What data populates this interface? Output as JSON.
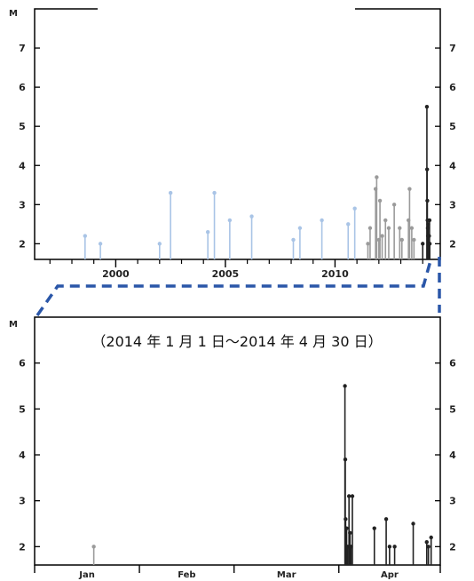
{
  "chart_data": [
    {
      "type": "stem",
      "ylabel": "M",
      "ylim": [
        1.6,
        8.0
      ],
      "yticks": [
        2,
        3,
        4,
        5,
        6,
        7
      ],
      "xlim": [
        1996.3,
        2014.8
      ],
      "xticks": [
        2000,
        2005,
        2010
      ],
      "x_minor_ticks": [
        1997,
        1998,
        1999,
        2001,
        2002,
        2003,
        2004,
        2006,
        2007,
        2008,
        2009,
        2011,
        2012,
        2013,
        2014
      ],
      "colors": {
        "before_2011": "#a9c4e6",
        "from_2011": "#9b9b9b",
        "year_2014": "#222222"
      },
      "points": [
        {
          "x": 1998.6,
          "y": 2.2
        },
        {
          "x": 1999.3,
          "y": 2.0
        },
        {
          "x": 2002.0,
          "y": 2.0
        },
        {
          "x": 2002.5,
          "y": 3.3
        },
        {
          "x": 2004.2,
          "y": 2.3
        },
        {
          "x": 2004.5,
          "y": 3.3
        },
        {
          "x": 2005.2,
          "y": 2.6
        },
        {
          "x": 2006.2,
          "y": 2.7
        },
        {
          "x": 2008.1,
          "y": 2.1
        },
        {
          "x": 2008.4,
          "y": 2.4
        },
        {
          "x": 2009.4,
          "y": 2.6
        },
        {
          "x": 2010.6,
          "y": 2.5
        },
        {
          "x": 2010.9,
          "y": 2.9
        },
        {
          "x": 2011.5,
          "y": 2.0
        },
        {
          "x": 2011.6,
          "y": 2.4
        },
        {
          "x": 2011.85,
          "y": 3.4
        },
        {
          "x": 2011.9,
          "y": 3.7
        },
        {
          "x": 2012.0,
          "y": 2.1
        },
        {
          "x": 2012.05,
          "y": 3.1
        },
        {
          "x": 2012.15,
          "y": 2.2
        },
        {
          "x": 2012.3,
          "y": 2.6
        },
        {
          "x": 2012.45,
          "y": 2.4
        },
        {
          "x": 2012.7,
          "y": 3.0
        },
        {
          "x": 2012.95,
          "y": 2.4
        },
        {
          "x": 2013.05,
          "y": 2.1
        },
        {
          "x": 2013.35,
          "y": 2.6
        },
        {
          "x": 2013.4,
          "y": 3.4
        },
        {
          "x": 2013.5,
          "y": 2.4
        },
        {
          "x": 2013.6,
          "y": 2.1
        },
        {
          "x": 2014.0,
          "y": 2.0
        },
        {
          "x": 2014.19,
          "y": 5.5
        },
        {
          "x": 2014.2,
          "y": 3.9
        },
        {
          "x": 2014.21,
          "y": 3.1
        },
        {
          "x": 2014.22,
          "y": 2.6
        },
        {
          "x": 2014.23,
          "y": 2.4
        },
        {
          "x": 2014.24,
          "y": 2.2
        },
        {
          "x": 2014.25,
          "y": 2.5
        },
        {
          "x": 2014.27,
          "y": 2.0
        },
        {
          "x": 2014.29,
          "y": 2.2
        },
        {
          "x": 2014.31,
          "y": 2.6
        },
        {
          "x": 2014.32,
          "y": 2.0
        }
      ]
    },
    {
      "type": "stem",
      "title": "（2014 年 1 月 1 日～2014 年 4 月 30 日）",
      "ylabel": "M",
      "ylim": [
        1.6,
        7.0
      ],
      "yticks": [
        2,
        3,
        4,
        5,
        6
      ],
      "xlim": [
        0,
        120
      ],
      "months": [
        "Jan",
        "Feb",
        "Mar",
        "Apr"
      ],
      "month_boundaries": [
        0,
        31,
        59,
        90,
        120
      ],
      "colors": {
        "early": "#9b9b9b",
        "main": "#222222"
      },
      "points": [
        {
          "x": 17.5,
          "y": 2.0
        },
        {
          "x": 91.8,
          "y": 5.5
        },
        {
          "x": 91.9,
          "y": 3.9
        },
        {
          "x": 92.0,
          "y": 2.6
        },
        {
          "x": 92.3,
          "y": 2.4
        },
        {
          "x": 92.6,
          "y": 2.0
        },
        {
          "x": 93.0,
          "y": 3.1
        },
        {
          "x": 93.3,
          "y": 2.3
        },
        {
          "x": 93.6,
          "y": 2.0
        },
        {
          "x": 94.0,
          "y": 3.1
        },
        {
          "x": 100.5,
          "y": 2.4
        },
        {
          "x": 104.0,
          "y": 2.6
        },
        {
          "x": 105.0,
          "y": 2.0
        },
        {
          "x": 106.5,
          "y": 2.0
        },
        {
          "x": 112.0,
          "y": 2.5
        },
        {
          "x": 116.0,
          "y": 2.1
        },
        {
          "x": 116.5,
          "y": 2.0
        },
        {
          "x": 117.3,
          "y": 2.2
        }
      ]
    }
  ]
}
